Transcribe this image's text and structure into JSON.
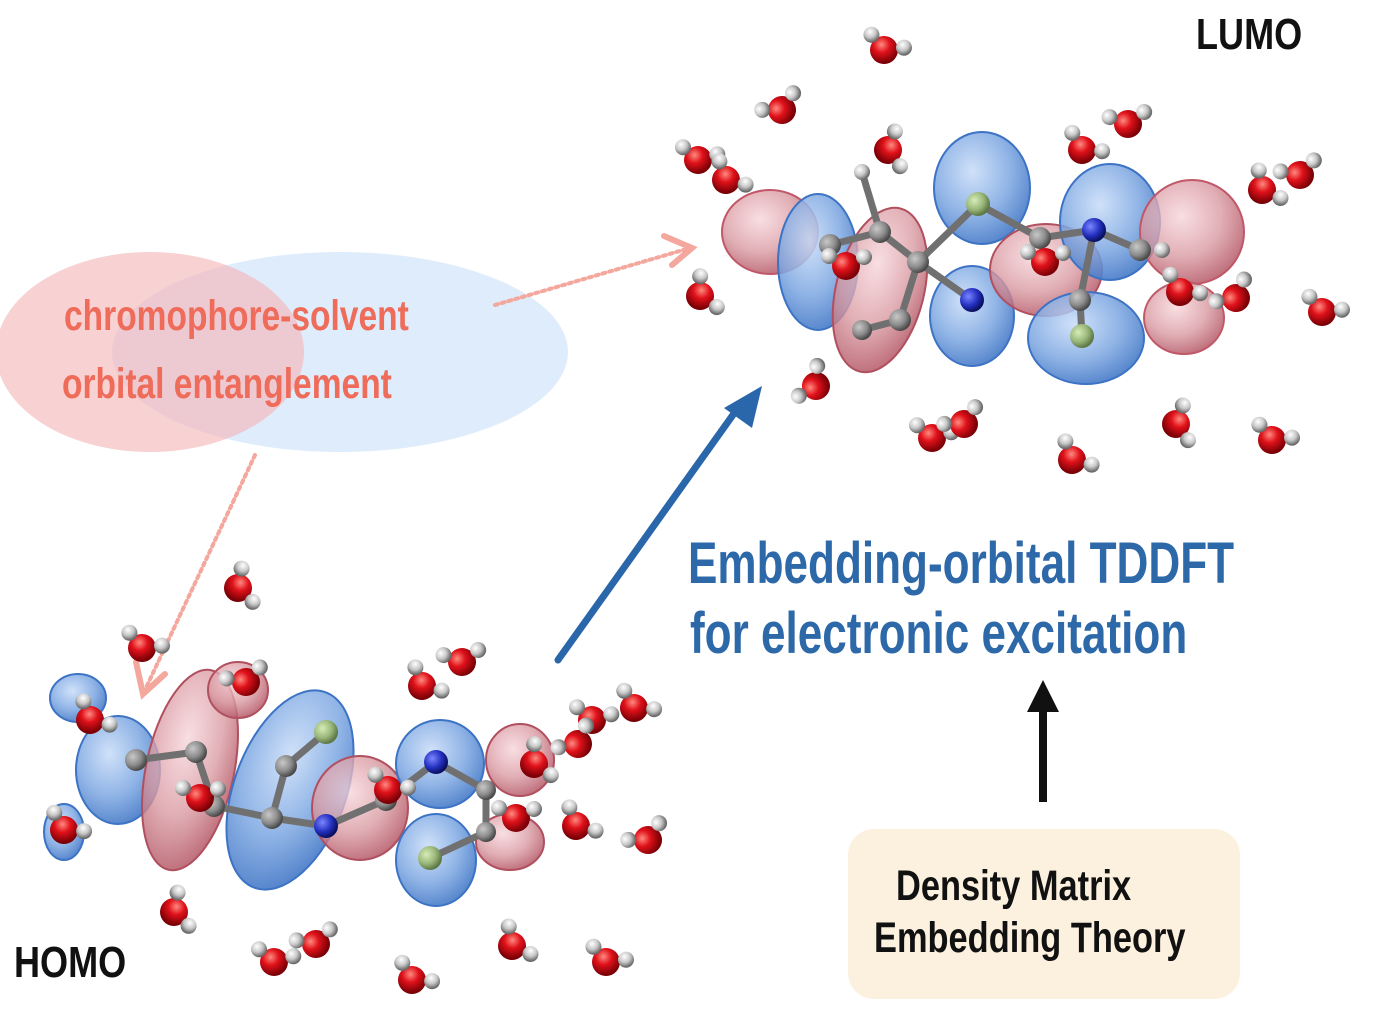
{
  "labels": {
    "lumo": "LUMO",
    "homo": "HOMO"
  },
  "entanglement": {
    "line1": "chromophore-solvent",
    "line2": "orbital entanglement"
  },
  "method": {
    "line1": "Embedding-orbital TDDFT",
    "line2": "for electronic excitation"
  },
  "theory_box": {
    "line1": "Density Matrix",
    "line2": "Embedding Theory"
  },
  "colors": {
    "entanglement_text": "#ef6b5a",
    "method_text": "#2d68a9",
    "theory_box_bg": "#fcf0df",
    "orbital_positive": "#6f9fdc",
    "orbital_negative": "#d9848f",
    "oxygen": "#e0111a",
    "hydrogen": "#c8c8c8",
    "carbon": "#8c8c8c",
    "nitrogen": "#2430c0",
    "fluorine": "#9ab77a"
  },
  "icons": [
    "water-molecule-icon",
    "chromophore-molecule-icon",
    "orbital-lobe-icon"
  ]
}
